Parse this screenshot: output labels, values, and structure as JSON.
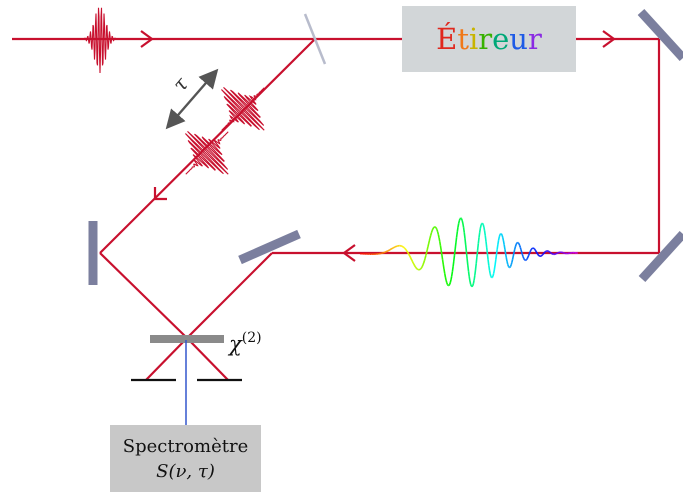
{
  "stretcher": {
    "letters": [
      "É",
      "t",
      "i",
      "r",
      "e",
      "u",
      "r"
    ],
    "letter_colors": [
      "#e0281e",
      "#f07818",
      "#c8b400",
      "#38b000",
      "#00a878",
      "#1e5ae6",
      "#8a2be2"
    ]
  },
  "crystal": {
    "symbol": "χ",
    "order": "(2)"
  },
  "spectrometer": {
    "title": "Spectromètre",
    "formula_s": "S",
    "formula_args": "(ν, τ)"
  },
  "delay": {
    "symbol": "τ"
  },
  "colors": {
    "beam": "#c8102e",
    "mirror": "#7b7f9e",
    "box": "#d2d6d8",
    "spectrometer_box": "#c8c8c8",
    "signal": "#3355cc",
    "arrow": "#555555"
  }
}
